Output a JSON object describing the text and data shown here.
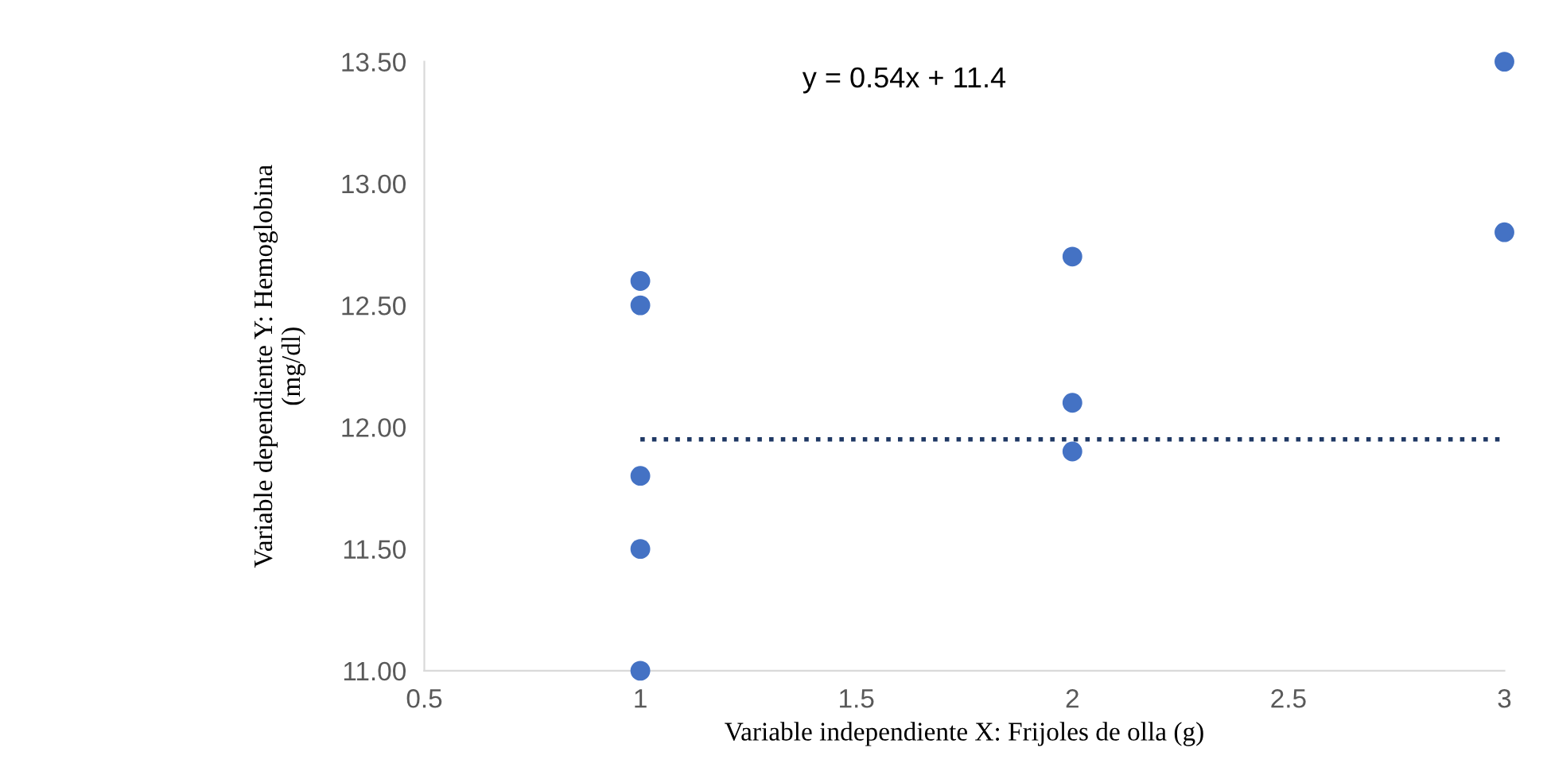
{
  "chart_data": {
    "type": "scatter",
    "xlabel": "Variable independiente X: Frijoles de olla (g)",
    "ylabel": "Variable dependiente Y: Hemoglobina\n(mg/dl)",
    "annotations": [
      "y = 0.54x + 11.4"
    ],
    "series": [
      {
        "color": "#4472c4",
        "marker": "circle",
        "x": [
          1,
          1,
          1,
          1,
          1,
          2,
          2,
          2,
          3,
          3
        ],
        "values": [
          11.0,
          11.5,
          11.8,
          12.5,
          12.6,
          11.9,
          12.1,
          12.7,
          12.8,
          13.5
        ]
      },
      {
        "type": "line",
        "color": "#1f3864",
        "line_style": "dotted",
        "x": [
          1,
          3
        ],
        "values": [
          11.95,
          11.95
        ]
      }
    ],
    "xlim": [
      0.5,
      3
    ],
    "ylim": [
      11,
      13.5
    ],
    "xticks": [
      0.5,
      1,
      1.5,
      2,
      2.5,
      3
    ],
    "yticks": [
      {
        "value": 11,
        "label": "11.00"
      },
      {
        "value": 11.5,
        "label": "11.50"
      },
      {
        "value": 12,
        "label": "12.00"
      },
      {
        "value": 12.5,
        "label": "12.50"
      },
      {
        "value": 13,
        "label": "13.00"
      },
      {
        "value": 13.5,
        "label": "13.50"
      }
    ],
    "grid": false
  }
}
